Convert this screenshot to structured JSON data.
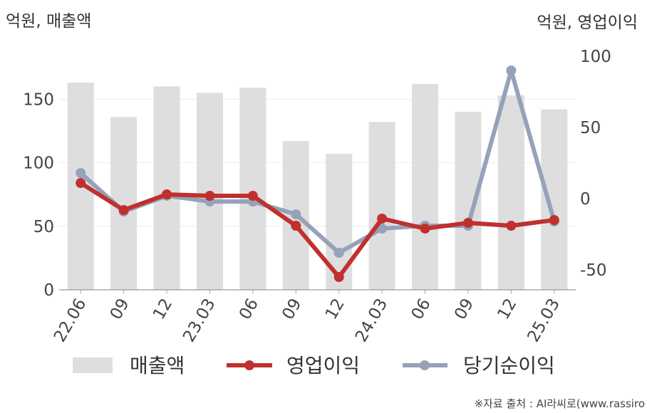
{
  "chart_data": {
    "type": "bar+line",
    "left_unit_label": "억원, 매출액",
    "right_unit_label": "억원, 영업이익",
    "categories": [
      "22.06",
      "09",
      "12",
      "23.03",
      "06",
      "09",
      "12",
      "24.03",
      "06",
      "09",
      "12",
      "25.03"
    ],
    "left_axis": {
      "ylim": [
        0,
        180
      ],
      "ticks": [
        0,
        50,
        100,
        150
      ]
    },
    "right_axis": {
      "ylim": [
        -60,
        100
      ],
      "ticks": [
        -50,
        0,
        50,
        100
      ]
    },
    "bar_series": {
      "name": "매출액",
      "axis": "left",
      "color": "#dedede",
      "values": [
        163,
        136,
        160,
        155,
        159,
        117,
        107,
        132,
        162,
        140,
        153,
        142
      ]
    },
    "line_series": [
      {
        "name": "영업이익",
        "axis": "right",
        "color": "#c0302f",
        "values": [
          11,
          -8,
          3,
          2,
          2,
          -19,
          -55,
          -14,
          -21,
          -17,
          -19,
          -15
        ]
      },
      {
        "name": "당기순이익",
        "axis": "right",
        "color": "#95a2b9",
        "values": [
          18,
          -9,
          2,
          -2,
          -2,
          -11,
          -38,
          -21,
          -19,
          -19,
          90,
          -16
        ]
      }
    ],
    "grid": true,
    "legend": "bottom"
  },
  "source_text": "※자료 출처 : AI라씨로(www.rassiro"
}
